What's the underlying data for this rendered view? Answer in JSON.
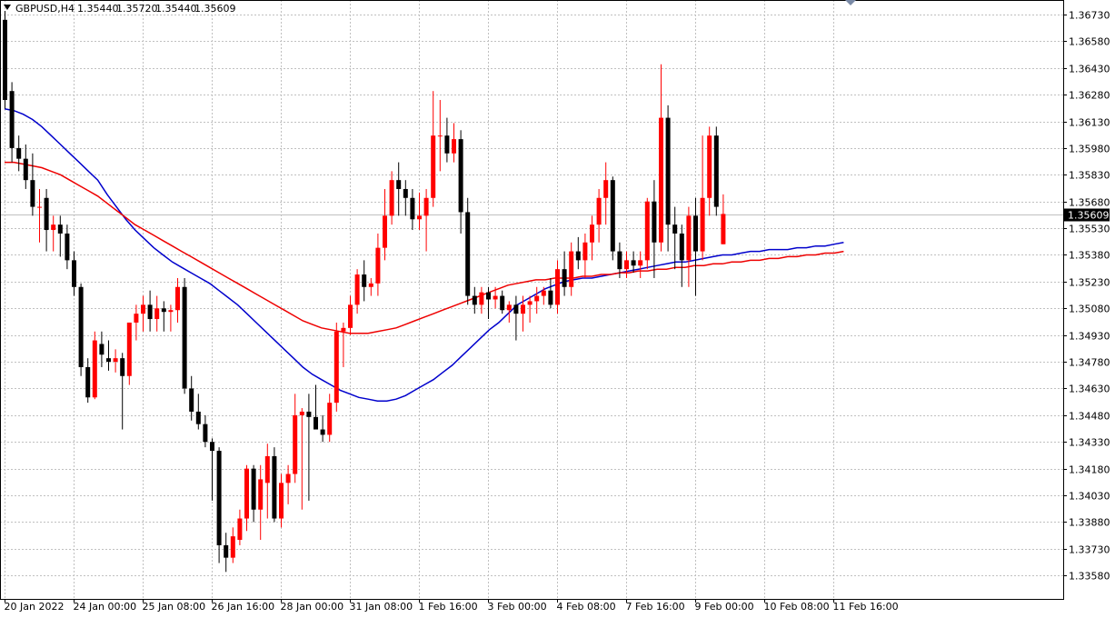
{
  "header": {
    "symbol": "GBPUSD,H4",
    "open": "1.35440",
    "high": "1.35720",
    "low": "1.35440",
    "close": "1.35609"
  },
  "colors": {
    "bull": "#ff0000",
    "bear": "#000000",
    "ma_fast": "#0000cc",
    "ma_slow": "#ee0000",
    "grid": "#c0c0c0",
    "price_tag_bg": "#000000",
    "price_tag_fg": "#ffffff"
  },
  "chart_data": {
    "type": "candlestick",
    "title": "GBPUSD,H4",
    "current_price": "1.35609",
    "grid": true,
    "price_range": [
      1.3352,
      1.3675
    ],
    "y_ticks": [
      "1.36730",
      "1.36580",
      "1.36430",
      "1.36280",
      "1.36130",
      "1.35980",
      "1.35830",
      "1.35680",
      "1.35530",
      "1.35380",
      "1.35230",
      "1.35080",
      "1.34930",
      "1.34780",
      "1.34630",
      "1.34480",
      "1.34330",
      "1.34180",
      "1.34030",
      "1.33880",
      "1.33730",
      "1.33580"
    ],
    "x_ticks": [
      {
        "label": "20 Jan 2022",
        "bar": 0
      },
      {
        "label": "24 Jan 00:00",
        "bar": 10
      },
      {
        "label": "25 Jan 08:00",
        "bar": 20
      },
      {
        "label": "26 Jan 16:00",
        "bar": 30
      },
      {
        "label": "28 Jan 00:00",
        "bar": 40
      },
      {
        "label": "31 Jan 08:00",
        "bar": 50
      },
      {
        "label": "1 Feb 16:00",
        "bar": 60
      },
      {
        "label": "3 Feb 00:00",
        "bar": 70
      },
      {
        "label": "4 Feb 08:00",
        "bar": 80
      },
      {
        "label": "7 Feb 16:00",
        "bar": 90
      },
      {
        "label": "9 Feb 00:00",
        "bar": 100
      },
      {
        "label": "10 Feb 08:00",
        "bar": 110
      },
      {
        "label": "11 Feb 16:00",
        "bar": 120
      }
    ],
    "ohlc": [
      [
        1.367,
        1.3675,
        1.362,
        1.3625
      ],
      [
        1.363,
        1.3635,
        1.359,
        1.3598
      ],
      [
        1.3598,
        1.3605,
        1.3585,
        1.3592
      ],
      [
        1.3592,
        1.36,
        1.3575,
        1.358
      ],
      [
        1.358,
        1.3595,
        1.356,
        1.3565
      ],
      [
        1.3565,
        1.3575,
        1.3545,
        1.3565
      ],
      [
        1.357,
        1.3575,
        1.354,
        1.3552
      ],
      [
        1.3552,
        1.356,
        1.354,
        1.3555
      ],
      [
        1.3555,
        1.356,
        1.3537,
        1.355
      ],
      [
        1.355,
        1.3555,
        1.353,
        1.3535
      ],
      [
        1.3535,
        1.354,
        1.3515,
        1.352
      ],
      [
        1.352,
        1.3522,
        1.347,
        1.3475
      ],
      [
        1.3475,
        1.348,
        1.3455,
        1.3458
      ],
      [
        1.3458,
        1.3495,
        1.3457,
        1.349
      ],
      [
        1.3488,
        1.3495,
        1.3475,
        1.3482
      ],
      [
        1.348,
        1.349,
        1.3473,
        1.3478
      ],
      [
        1.3478,
        1.3485,
        1.3472,
        1.348
      ],
      [
        1.348,
        1.3483,
        1.344,
        1.347
      ],
      [
        1.347,
        1.35,
        1.3465,
        1.35
      ],
      [
        1.35,
        1.351,
        1.349,
        1.3505
      ],
      [
        1.3505,
        1.3515,
        1.3495,
        1.351
      ],
      [
        1.351,
        1.3518,
        1.3495,
        1.3502
      ],
      [
        1.3502,
        1.3515,
        1.3495,
        1.3508
      ],
      [
        1.3508,
        1.3512,
        1.3495,
        1.3506
      ],
      [
        1.3506,
        1.351,
        1.3495,
        1.3507
      ],
      [
        1.3507,
        1.3525,
        1.35,
        1.352
      ],
      [
        1.352,
        1.3525,
        1.346,
        1.3463
      ],
      [
        1.3463,
        1.347,
        1.3445,
        1.345
      ],
      [
        1.345,
        1.346,
        1.344,
        1.3443
      ],
      [
        1.3443,
        1.3448,
        1.343,
        1.3433
      ],
      [
        1.3433,
        1.3435,
        1.34,
        1.3428
      ],
      [
        1.3428,
        1.343,
        1.3365,
        1.3375
      ],
      [
        1.3375,
        1.3382,
        1.336,
        1.3368
      ],
      [
        1.3368,
        1.3385,
        1.3365,
        1.338
      ],
      [
        1.3378,
        1.3395,
        1.3375,
        1.339
      ],
      [
        1.339,
        1.342,
        1.3383,
        1.3418
      ],
      [
        1.3418,
        1.342,
        1.3388,
        1.3395
      ],
      [
        1.3395,
        1.342,
        1.3378,
        1.3412
      ],
      [
        1.341,
        1.3432,
        1.339,
        1.3425
      ],
      [
        1.3425,
        1.343,
        1.3388,
        1.339
      ],
      [
        1.339,
        1.3415,
        1.3385,
        1.341
      ],
      [
        1.341,
        1.342,
        1.3398,
        1.3415
      ],
      [
        1.3415,
        1.346,
        1.341,
        1.3448
      ],
      [
        1.3448,
        1.3452,
        1.3395,
        1.345
      ],
      [
        1.345,
        1.346,
        1.34,
        1.3447
      ],
      [
        1.3447,
        1.3465,
        1.344,
        1.344
      ],
      [
        1.344,
        1.3448,
        1.3433,
        1.3437
      ],
      [
        1.3437,
        1.346,
        1.3433,
        1.3455
      ],
      [
        1.3455,
        1.35,
        1.345,
        1.3495
      ],
      [
        1.3495,
        1.35,
        1.3475,
        1.3497
      ],
      [
        1.3497,
        1.3515,
        1.3493,
        1.351
      ],
      [
        1.351,
        1.353,
        1.3505,
        1.3527
      ],
      [
        1.3527,
        1.3535,
        1.3512,
        1.352
      ],
      [
        1.352,
        1.3525,
        1.3515,
        1.3522
      ],
      [
        1.3522,
        1.355,
        1.3515,
        1.3542
      ],
      [
        1.3542,
        1.3575,
        1.3535,
        1.356
      ],
      [
        1.356,
        1.3585,
        1.3555,
        1.358
      ],
      [
        1.358,
        1.359,
        1.356,
        1.3575
      ],
      [
        1.3575,
        1.358,
        1.356,
        1.357
      ],
      [
        1.357,
        1.3575,
        1.3552,
        1.3558
      ],
      [
        1.3558,
        1.3573,
        1.3552,
        1.356
      ],
      [
        1.356,
        1.3575,
        1.354,
        1.357
      ],
      [
        1.357,
        1.363,
        1.3565,
        1.3605
      ],
      [
        1.3605,
        1.3625,
        1.3585,
        1.3605
      ],
      [
        1.3605,
        1.3615,
        1.359,
        1.3595
      ],
      [
        1.3595,
        1.3612,
        1.359,
        1.3603
      ],
      [
        1.3603,
        1.3608,
        1.355,
        1.3562
      ],
      [
        1.3562,
        1.357,
        1.351,
        1.3515
      ],
      [
        1.3515,
        1.352,
        1.3505,
        1.351
      ],
      [
        1.351,
        1.352,
        1.3505,
        1.3517
      ],
      [
        1.3517,
        1.352,
        1.3502,
        1.3513
      ],
      [
        1.3513,
        1.352,
        1.3508,
        1.3515
      ],
      [
        1.3515,
        1.3518,
        1.3505,
        1.3507
      ],
      [
        1.3507,
        1.3512,
        1.35,
        1.351
      ],
      [
        1.351,
        1.3515,
        1.349,
        1.3505
      ],
      [
        1.3505,
        1.3515,
        1.3495,
        1.351
      ],
      [
        1.351,
        1.3515,
        1.35,
        1.3512
      ],
      [
        1.3512,
        1.352,
        1.3505,
        1.3515
      ],
      [
        1.3515,
        1.352,
        1.351,
        1.3518
      ],
      [
        1.3518,
        1.3525,
        1.3508,
        1.351
      ],
      [
        1.351,
        1.3535,
        1.3505,
        1.353
      ],
      [
        1.353,
        1.354,
        1.3515,
        1.352
      ],
      [
        1.352,
        1.3545,
        1.3515,
        1.354
      ],
      [
        1.354,
        1.3548,
        1.353,
        1.3535
      ],
      [
        1.3535,
        1.355,
        1.3525,
        1.3545
      ],
      [
        1.3545,
        1.356,
        1.3535,
        1.3555
      ],
      [
        1.3555,
        1.3575,
        1.3545,
        1.357
      ],
      [
        1.357,
        1.359,
        1.3555,
        1.358
      ],
      [
        1.358,
        1.3582,
        1.3535,
        1.354
      ],
      [
        1.354,
        1.3545,
        1.3525,
        1.353
      ],
      [
        1.353,
        1.354,
        1.3525,
        1.3535
      ],
      [
        1.3535,
        1.354,
        1.3528,
        1.3532
      ],
      [
        1.3532,
        1.354,
        1.3525,
        1.3535
      ],
      [
        1.3535,
        1.357,
        1.353,
        1.3568
      ],
      [
        1.3568,
        1.358,
        1.3525,
        1.3545
      ],
      [
        1.3545,
        1.3645,
        1.354,
        1.3615
      ],
      [
        1.3615,
        1.3622,
        1.354,
        1.3555
      ],
      [
        1.3555,
        1.3565,
        1.353,
        1.355
      ],
      [
        1.355,
        1.3555,
        1.352,
        1.3535
      ],
      [
        1.3535,
        1.3565,
        1.352,
        1.356
      ],
      [
        1.356,
        1.357,
        1.3515,
        1.354
      ],
      [
        1.354,
        1.3605,
        1.3535,
        1.357
      ],
      [
        1.357,
        1.361,
        1.356,
        1.3605
      ],
      [
        1.3605,
        1.361,
        1.356,
        1.3565
      ],
      [
        1.3544,
        1.3572,
        1.3544,
        1.3561
      ]
    ],
    "series": [
      {
        "line": "fast",
        "values": [
          1.362,
          1.3619,
          1.3617,
          1.3614,
          1.361,
          1.3605,
          1.36,
          1.3595,
          1.359,
          1.3585,
          1.358,
          1.3572,
          1.3565,
          1.3558,
          1.3552,
          1.3547,
          1.3542,
          1.3538,
          1.3534,
          1.3531,
          1.3528,
          1.3525,
          1.3522,
          1.3518,
          1.3514,
          1.351,
          1.3505,
          1.35,
          1.3495,
          1.349,
          1.3485,
          1.348,
          1.3475,
          1.3471,
          1.3468,
          1.3465,
          1.3462,
          1.346,
          1.3458,
          1.3457,
          1.3456,
          1.3456,
          1.3457,
          1.3459,
          1.3462,
          1.3465,
          1.3468,
          1.3472,
          1.3476,
          1.3481,
          1.3486,
          1.3491,
          1.3496,
          1.35,
          1.3505,
          1.351,
          1.3513,
          1.3516,
          1.3519,
          1.3521,
          1.3523,
          1.3524,
          1.3525,
          1.3525,
          1.3526,
          1.3527,
          1.3528,
          1.3529,
          1.353,
          1.3531,
          1.3532,
          1.3533,
          1.3534,
          1.3534,
          1.3535,
          1.3536,
          1.3537,
          1.3538,
          1.3538,
          1.3539,
          1.354,
          1.354,
          1.3541,
          1.3541,
          1.3541,
          1.3542,
          1.3542,
          1.3543,
          1.3543,
          1.3544,
          1.3545
        ]
      },
      {
        "line": "slow",
        "values": [
          1.359,
          1.359,
          1.3589,
          1.3588,
          1.3587,
          1.3585,
          1.3583,
          1.358,
          1.3577,
          1.3574,
          1.3571,
          1.3567,
          1.3563,
          1.3559,
          1.3555,
          1.3552,
          1.3549,
          1.3546,
          1.3543,
          1.354,
          1.3537,
          1.3534,
          1.3531,
          1.3528,
          1.3525,
          1.3522,
          1.3519,
          1.3516,
          1.3513,
          1.351,
          1.3507,
          1.3504,
          1.3501,
          1.3499,
          1.3497,
          1.3496,
          1.3495,
          1.3494,
          1.3494,
          1.3494,
          1.3495,
          1.3496,
          1.3497,
          1.3499,
          1.3501,
          1.3503,
          1.3505,
          1.3507,
          1.3509,
          1.3511,
          1.3513,
          1.3515,
          1.3517,
          1.3519,
          1.3521,
          1.3522,
          1.3523,
          1.3524,
          1.3524,
          1.3525,
          1.3525,
          1.3525,
          1.3526,
          1.3526,
          1.3527,
          1.3527,
          1.3528,
          1.3528,
          1.3529,
          1.3529,
          1.353,
          1.353,
          1.3531,
          1.3531,
          1.3532,
          1.3532,
          1.3533,
          1.3533,
          1.3534,
          1.3534,
          1.3535,
          1.3535,
          1.3536,
          1.3536,
          1.3537,
          1.3537,
          1.3538,
          1.3538,
          1.3539,
          1.3539,
          1.354
        ]
      }
    ]
  }
}
